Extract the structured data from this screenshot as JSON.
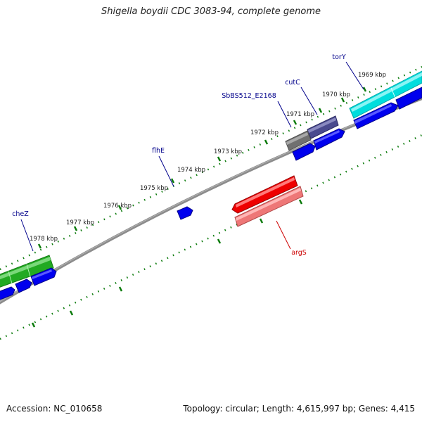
{
  "map": {
    "title": "Shigella boydii CDC 3083-94, complete genome",
    "accession": "Accession: NC_010658",
    "summary": "Topology: circular; Length: 4,615,997 bp; Genes: 4,415",
    "colors": {
      "backbone": "#808080",
      "tick": "#0a7a0a",
      "label_fwd": "#00008b",
      "label_rev": "#cc0000",
      "cds": "#0000ee",
      "tRNA": "#00dddd",
      "gray_gene": "#7a7a7a",
      "purple_gene": "#4a4a8e",
      "green_gene": "#22aa22",
      "red_gene": "#ee0000",
      "pink_gene": "#ee7777"
    },
    "kbp_labels": [
      "1969 kbp",
      "1970 kbp",
      "1971 kbp",
      "1972 kbp",
      "1973 kbp",
      "1974 kbp",
      "1975 kbp",
      "1976 kbp",
      "1977 kbp",
      "1978 kbp"
    ],
    "gene_labels": {
      "torY": "torY",
      "cutC": "cutC",
      "SbBS512_E2168": "SbBS512_E2168",
      "flhE": "flhE",
      "cheZ": "cheZ",
      "argS": "argS"
    }
  }
}
